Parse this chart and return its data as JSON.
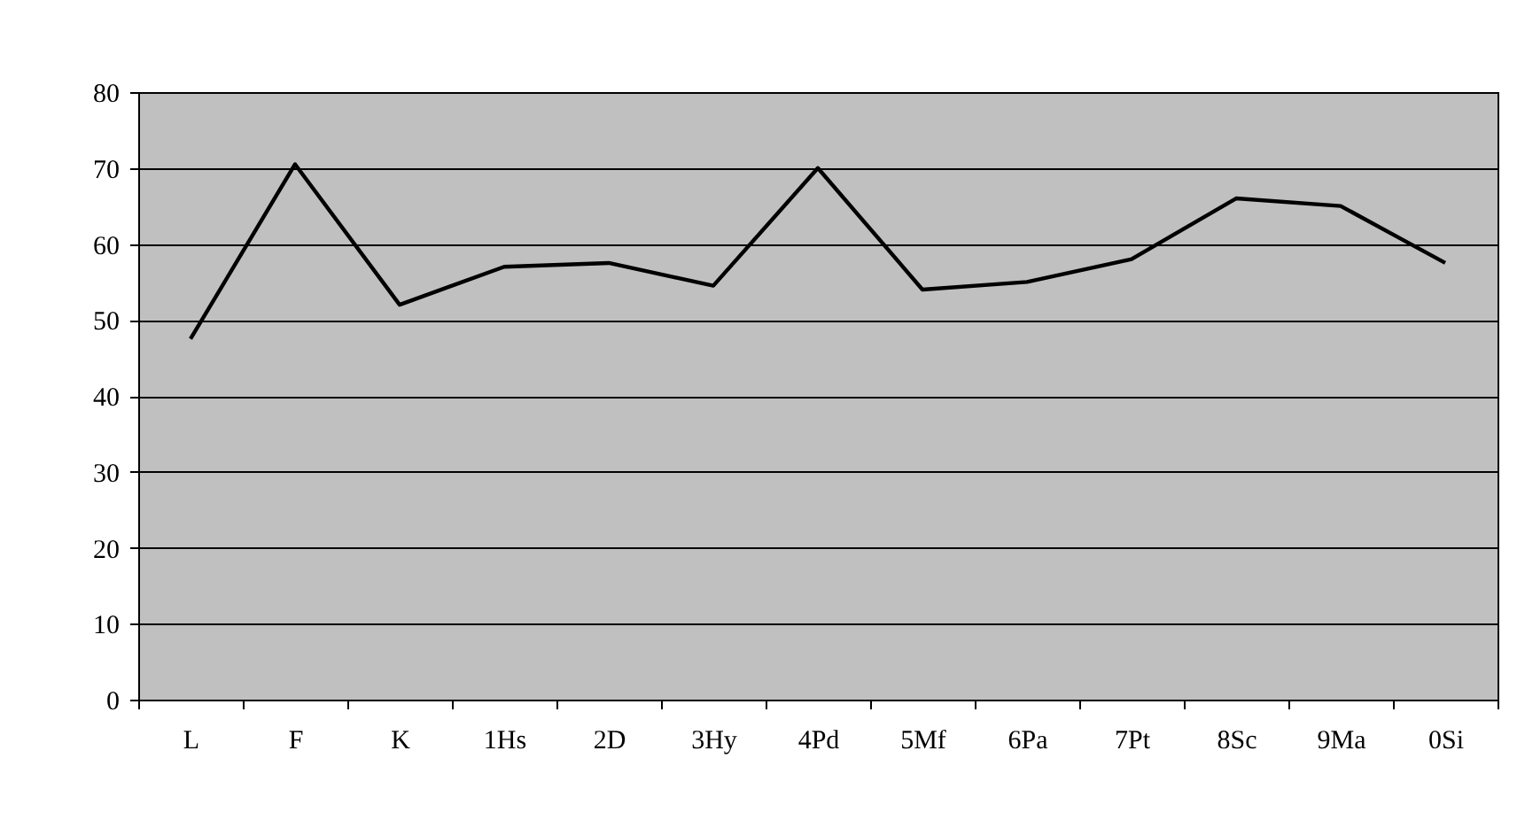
{
  "chart_data": {
    "type": "line",
    "categories": [
      "L",
      "F",
      "K",
      "1Hs",
      "2D",
      "3Hy",
      "4Pd",
      "5Mf",
      "6Pa",
      "7Pt",
      "8Sc",
      "9Ma",
      "0Si"
    ],
    "series": [
      {
        "color": "#000000",
        "values": [
          47.5,
          70.5,
          52,
          57,
          57.5,
          54.5,
          70,
          54,
          55,
          58,
          66,
          65,
          57.5
        ]
      }
    ],
    "ylim": [
      0,
      80
    ],
    "yticks": [
      0,
      10,
      20,
      30,
      40,
      50,
      60,
      70,
      80
    ],
    "grid": "y",
    "marker": "none",
    "line_style": "solid"
  }
}
